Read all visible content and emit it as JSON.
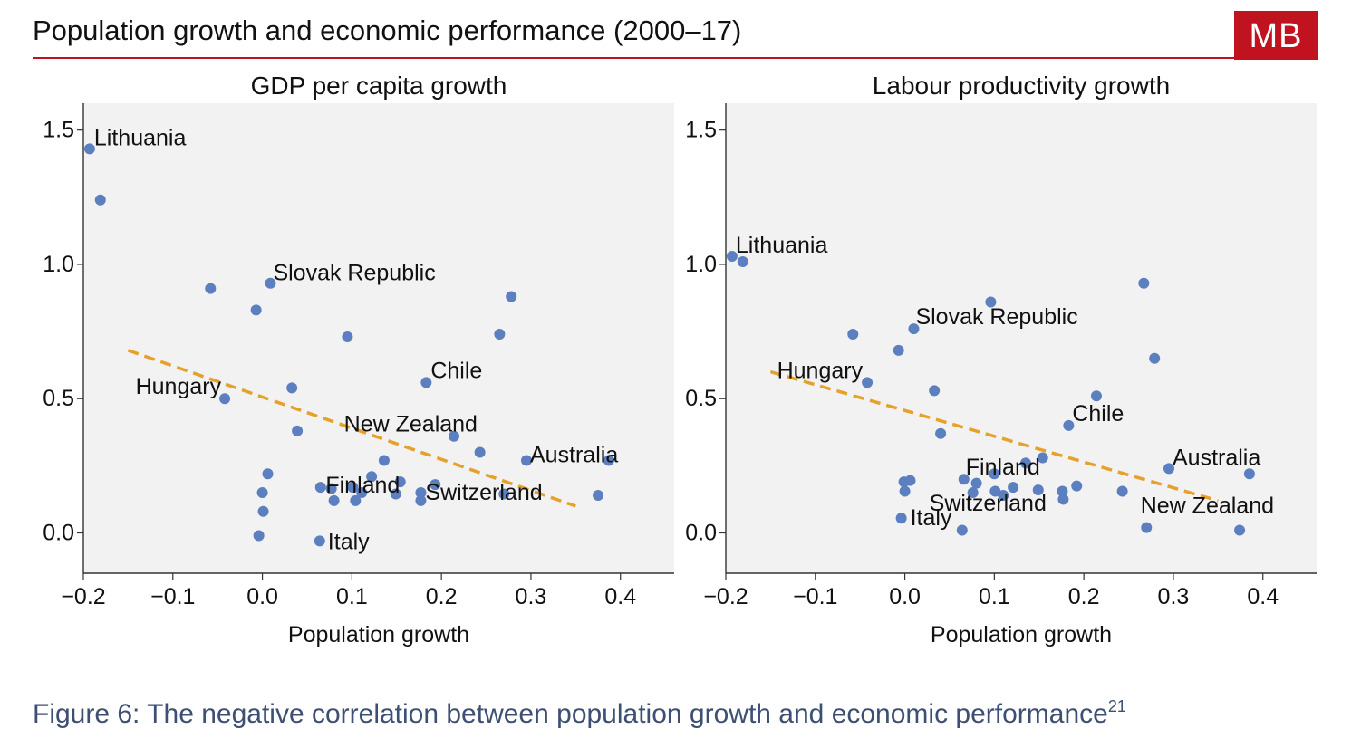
{
  "header": {
    "title": "Population growth and economic performance (2000–17)",
    "logo_text": "MB"
  },
  "caption": {
    "text": "Figure 6: The negative correlation between population growth and economic performance",
    "footnote": "21"
  },
  "colors": {
    "accent_red": "#c0121f",
    "point": "#5b7fbf",
    "trend": "#e6a12a",
    "plot_bg": "#f2f2f2",
    "caption": "#3d4f73"
  },
  "chart_data": [
    {
      "type": "scatter",
      "title": "GDP per capita growth",
      "xlabel": "Population growth",
      "ylabel": "",
      "xlim": [
        -0.2,
        0.46
      ],
      "ylim": [
        -0.15,
        1.6
      ],
      "xticks": [
        -0.2,
        -0.1,
        0.0,
        0.1,
        0.2,
        0.3,
        0.4
      ],
      "xtick_labels": [
        "−0.2",
        "−0.1",
        "0.0",
        "0.1",
        "0.2",
        "0.3",
        "0.4"
      ],
      "yticks": [
        0.0,
        0.5,
        1.0,
        1.5
      ],
      "ytick_labels": [
        "0.0",
        "0.5",
        "1.0",
        "1.5"
      ],
      "points": [
        [
          -0.193,
          1.43
        ],
        [
          -0.181,
          1.24
        ],
        [
          -0.058,
          0.91
        ],
        [
          0.009,
          0.93
        ],
        [
          -0.007,
          0.83
        ],
        [
          0.095,
          0.73
        ],
        [
          0.278,
          0.88
        ],
        [
          0.265,
          0.74
        ],
        [
          0.183,
          0.56
        ],
        [
          -0.042,
          0.5
        ],
        [
          0.033,
          0.54
        ],
        [
          0.039,
          0.38
        ],
        [
          0.214,
          0.36
        ],
        [
          0.243,
          0.3
        ],
        [
          0.136,
          0.27
        ],
        [
          0.295,
          0.27
        ],
        [
          0.387,
          0.27
        ],
        [
          0.006,
          0.22
        ],
        [
          0.122,
          0.21
        ],
        [
          0.154,
          0.19
        ],
        [
          0.065,
          0.17
        ],
        [
          0.077,
          0.165
        ],
        [
          0.101,
          0.17
        ],
        [
          0.111,
          0.15
        ],
        [
          0.149,
          0.145
        ],
        [
          0.177,
          0.15
        ],
        [
          0.193,
          0.18
        ],
        [
          0.27,
          0.145
        ],
        [
          0.375,
          0.14
        ],
        [
          0.0,
          0.15
        ],
        [
          0.08,
          0.12
        ],
        [
          0.104,
          0.12
        ],
        [
          0.177,
          0.12
        ],
        [
          0.001,
          0.08
        ],
        [
          -0.004,
          -0.01
        ],
        [
          0.064,
          -0.03
        ]
      ],
      "labels": [
        {
          "text": "Lithuania",
          "x": -0.193,
          "y": 1.43
        },
        {
          "text": "Slovak Republic",
          "x": 0.009,
          "y": 0.93
        },
        {
          "text": "Chile",
          "x": 0.183,
          "y": 0.56
        },
        {
          "text": "Hungary",
          "x": -0.042,
          "y": 0.5
        },
        {
          "text": "New Zealand",
          "x": 0.214,
          "y": 0.36
        },
        {
          "text": "Finland",
          "x": 0.101,
          "y": 0.17
        },
        {
          "text": "Switzerland",
          "x": 0.177,
          "y": 0.15
        },
        {
          "text": "Australia",
          "x": 0.295,
          "y": 0.27
        },
        {
          "text": "Italy",
          "x": 0.064,
          "y": -0.03
        }
      ],
      "trend": {
        "x": [
          -0.15,
          0.35
        ],
        "y": [
          0.68,
          0.1
        ]
      }
    },
    {
      "type": "scatter",
      "title": "Labour productivity growth",
      "xlabel": "Population growth",
      "ylabel": "",
      "xlim": [
        -0.2,
        0.46
      ],
      "ylim": [
        -0.15,
        1.6
      ],
      "xticks": [
        -0.2,
        -0.1,
        0.0,
        0.1,
        0.2,
        0.3,
        0.4
      ],
      "xtick_labels": [
        "−0.2",
        "−0.1",
        "0.0",
        "0.1",
        "0.2",
        "0.3",
        "0.4"
      ],
      "yticks": [
        0.0,
        0.5,
        1.0,
        1.5
      ],
      "ytick_labels": [
        "0.0",
        "0.5",
        "1.0",
        "1.5"
      ],
      "points": [
        [
          -0.193,
          1.03
        ],
        [
          -0.181,
          1.01
        ],
        [
          0.096,
          0.86
        ],
        [
          0.267,
          0.93
        ],
        [
          0.01,
          0.76
        ],
        [
          -0.058,
          0.74
        ],
        [
          -0.007,
          0.68
        ],
        [
          0.279,
          0.65
        ],
        [
          -0.042,
          0.56
        ],
        [
          0.033,
          0.53
        ],
        [
          0.214,
          0.51
        ],
        [
          0.183,
          0.4
        ],
        [
          0.04,
          0.37
        ],
        [
          0.154,
          0.28
        ],
        [
          0.135,
          0.26
        ],
        [
          0.295,
          0.24
        ],
        [
          0.385,
          0.22
        ],
        [
          0.1,
          0.22
        ],
        [
          0.066,
          0.2
        ],
        [
          0.08,
          0.185
        ],
        [
          -0.001,
          0.19
        ],
        [
          0.006,
          0.195
        ],
        [
          0.121,
          0.17
        ],
        [
          0.149,
          0.16
        ],
        [
          0.192,
          0.175
        ],
        [
          0.101,
          0.155
        ],
        [
          0.11,
          0.14
        ],
        [
          0.176,
          0.155
        ],
        [
          0.243,
          0.155
        ],
        [
          0.076,
          0.15
        ],
        [
          0.0,
          0.155
        ],
        [
          0.177,
          0.125
        ],
        [
          -0.004,
          0.055
        ],
        [
          0.064,
          0.01
        ],
        [
          0.27,
          0.02
        ],
        [
          0.374,
          0.01
        ]
      ],
      "labels": [
        {
          "text": "Lithuania",
          "x": -0.193,
          "y": 1.03
        },
        {
          "text": "Slovak Republic",
          "x": 0.01,
          "y": 0.76
        },
        {
          "text": "Hungary",
          "x": -0.042,
          "y": 0.56
        },
        {
          "text": "Chile",
          "x": 0.183,
          "y": 0.4
        },
        {
          "text": "Australia",
          "x": 0.295,
          "y": 0.24
        },
        {
          "text": "Finland",
          "x": 0.066,
          "y": 0.2
        },
        {
          "text": "Switzerland",
          "x": 0.076,
          "y": 0.15
        },
        {
          "text": "New Zealand",
          "x": 0.374,
          "y": 0.01
        },
        {
          "text": "Italy",
          "x": -0.004,
          "y": 0.055
        }
      ],
      "trend": {
        "x": [
          -0.15,
          0.35
        ],
        "y": [
          0.6,
          0.12
        ]
      }
    }
  ]
}
